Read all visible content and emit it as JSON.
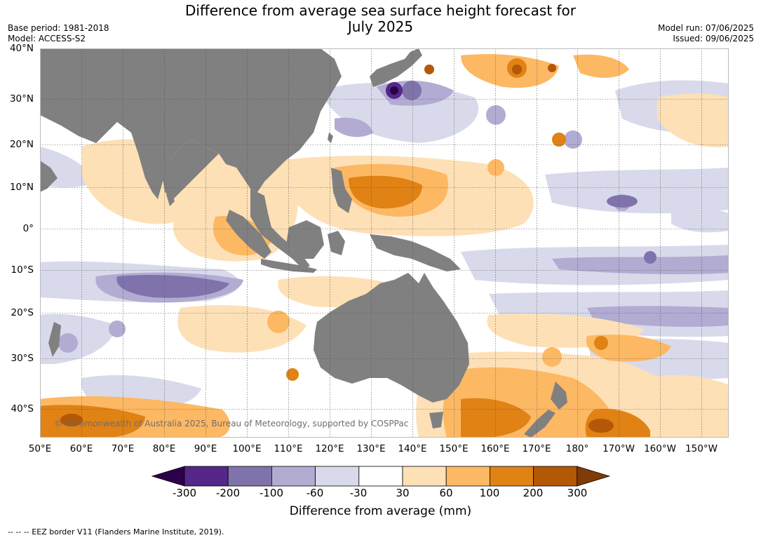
{
  "header": {
    "title_line1": "Difference from average sea surface height forecast for",
    "title_line2": "July 2025",
    "base_period": "Base period: 1981-2018",
    "model": "Model: ACCESS-S2",
    "model_run": "Model run: 07/06/2025",
    "issued": "Issued: 09/06/2025"
  },
  "map": {
    "lat_labels": [
      "40°N",
      "30°N",
      "20°N",
      "10°N",
      "0°",
      "10°S",
      "20°S",
      "30°S",
      "40°S"
    ],
    "lon_labels": [
      "50°E",
      "60°E",
      "70°E",
      "80°E",
      "90°E",
      "100°E",
      "110°E",
      "120°E",
      "130°E",
      "140°E",
      "150°E",
      "160°E",
      "170°E",
      "180°",
      "170°W",
      "160°W",
      "150°W"
    ],
    "land_color": "#808080",
    "copyright": "© Commonwealth of Australia 2025, Bureau of Meteorology, supported by COSPPac"
  },
  "colorbar": {
    "ticks": [
      "-300",
      "-200",
      "-100",
      "-60",
      "-30",
      "30",
      "60",
      "100",
      "200",
      "300"
    ],
    "colors": [
      "#2d004b",
      "#542788",
      "#8073ac",
      "#b2abd2",
      "#d8daeb",
      "#ffffff",
      "#fee0b6",
      "#fdb863",
      "#e08214",
      "#b35806",
      "#7f3b08"
    ],
    "label": "Difference from average (mm)"
  },
  "footer": {
    "legend_line": "--  --  -- EEZ border V11 (Flanders Marine Institute, 2019)."
  }
}
